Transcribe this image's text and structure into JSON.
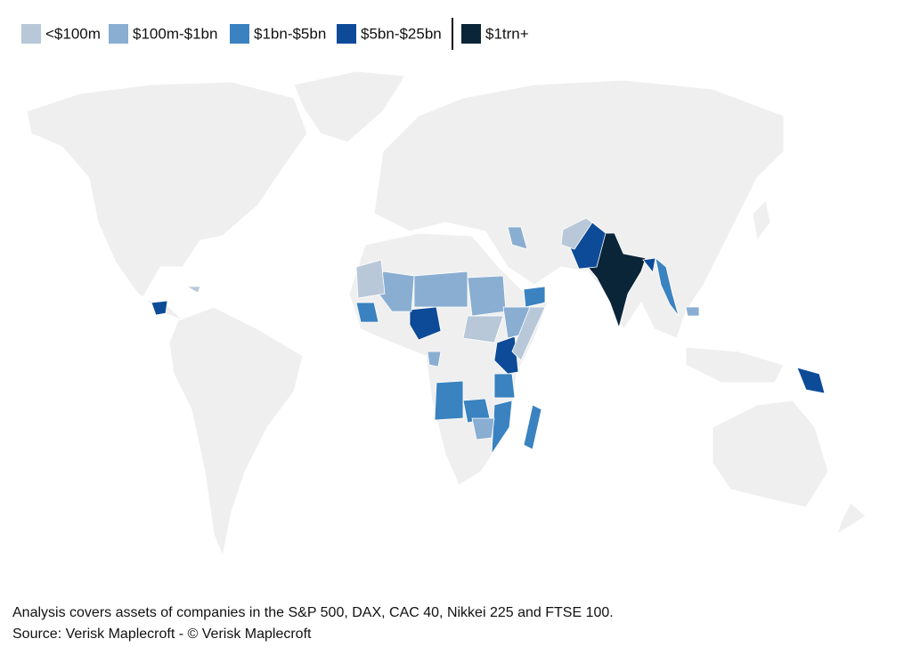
{
  "legend": {
    "items": [
      {
        "label": "<$100m",
        "color": "#b8c8d8"
      },
      {
        "label": "$100m-$1bn",
        "color": "#8aaed2"
      },
      {
        "label": "$1bn-$5bn",
        "color": "#3a82c0"
      },
      {
        "label": "$5bn-$25bn",
        "color": "#0d4b98"
      },
      {
        "label": "$1trn+",
        "color": "#0a2438"
      }
    ]
  },
  "footer": {
    "note": "Analysis covers assets of companies in the S&P 500, DAX, CAC 40, Nikkei 225 and FTSE 100.",
    "source": "Source: Verisk Maplecroft - © Verisk Maplecroft"
  }
}
